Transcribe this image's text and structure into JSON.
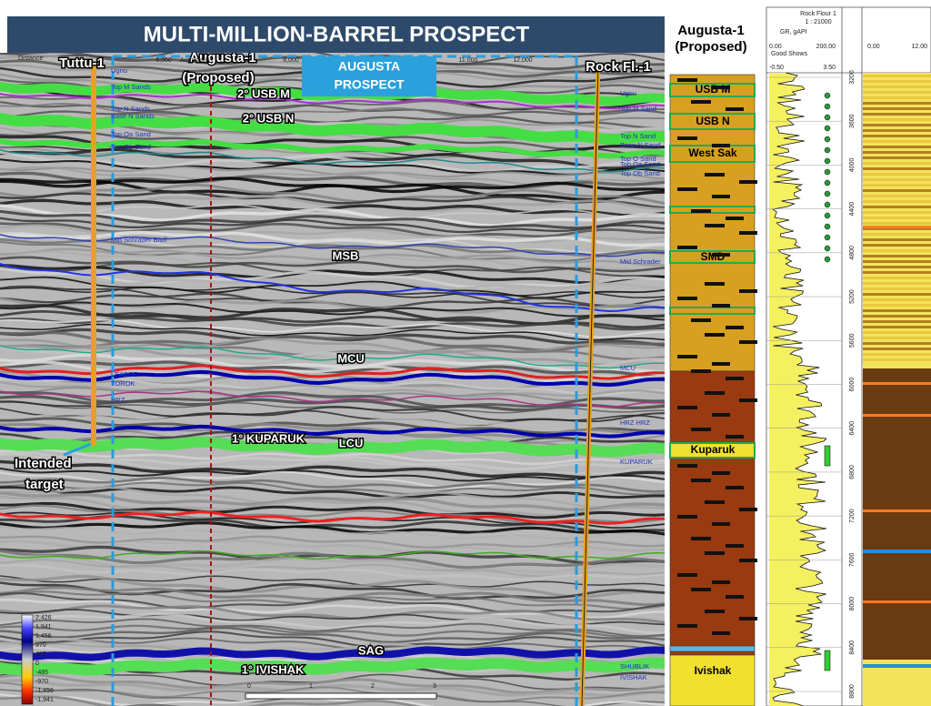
{
  "title": "MULTI-MILLION-BARREL PROSPECT",
  "seismic": {
    "wells": {
      "tuttu": "Tuttu-1",
      "augusta": [
        "Augusta-1",
        "(Proposed)"
      ],
      "rock": "Rock Fl.-1",
      "augusta_b": "Augusta-B"
    },
    "prospect": [
      "AUGUSTA",
      "PROSPECT"
    ],
    "horizons": [
      "2° USB M",
      "2° USB N",
      "MSB",
      "MCU",
      "1° KUPARUK",
      "LCU",
      "SAG",
      "1° IVISHAK"
    ],
    "target": [
      "Intended",
      "target"
    ],
    "distance_label": "Distance",
    "distance_ticks": [
      "6,000",
      "8,000",
      "11,000",
      "12,000"
    ],
    "picks_left": [
      "Ugnu",
      "Top M Sands",
      "Top N Sands",
      "Base N Sands",
      "Top Oa Sand",
      "Top Ob Sand",
      "Mid Schrader Bluff",
      "LEABEE",
      "TOROK",
      "HRZ"
    ],
    "picks_right": [
      "Ugnu",
      "Top M Sand",
      "Top N Sand",
      "Base N Sand",
      "Top O Sand",
      "Top Oa Sand",
      "Top Ob Sand",
      "Mid Schrader",
      "MCU",
      "HRZ HRZ",
      "KUPARUK",
      "SHUBLIK",
      "IVISHAK"
    ],
    "colorbar": [
      "2,426",
      "1,941",
      "1,456",
      "970",
      "485",
      "0",
      "-485",
      "-970",
      "-1,456",
      "-1,941"
    ],
    "scalebar": [
      "0",
      "1",
      "2",
      "3"
    ]
  },
  "column": {
    "title": [
      "Augusta-1",
      "(Proposed)"
    ],
    "units": [
      "USB M",
      "USB N",
      "West Sak",
      "SMD",
      "Kuparuk",
      "Ivishak"
    ]
  },
  "log": {
    "well": "Rock Flour 1",
    "scale": "1 : 21000",
    "curve": "GR, gAPI",
    "gr_range": [
      "0.00",
      "200.00"
    ],
    "shows": "Good Shows",
    "shows_range": [
      "-0.50",
      "3.50"
    ],
    "track2_range": [
      "0.00",
      "12.00"
    ],
    "depths": [
      3200,
      3600,
      4000,
      4400,
      4800,
      5200,
      5600,
      6000,
      6400,
      6800,
      7200,
      7600,
      8000,
      8400,
      8800
    ]
  }
}
